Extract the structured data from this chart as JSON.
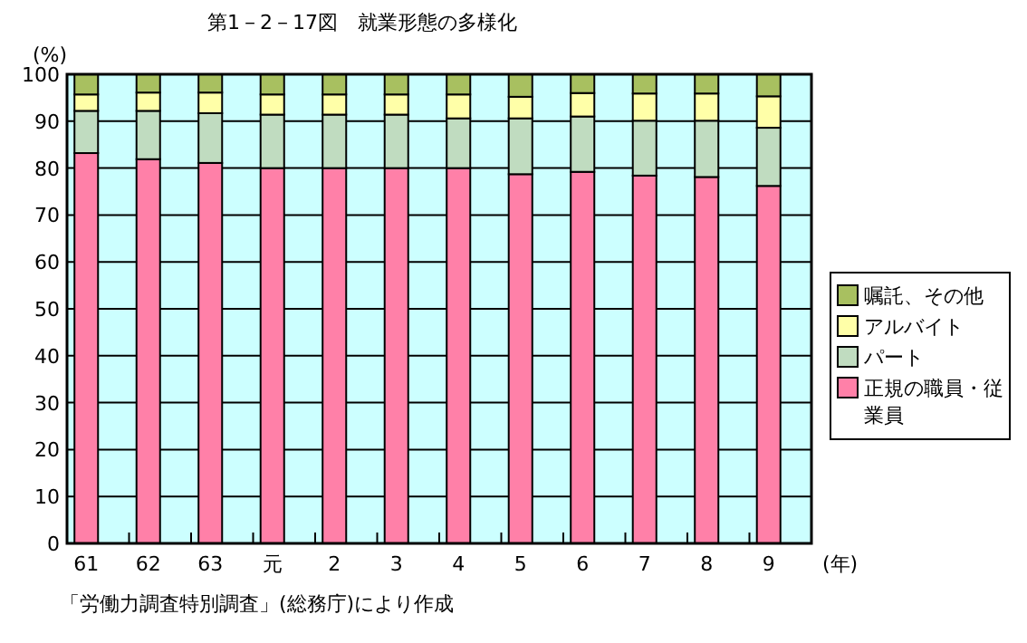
{
  "chart_data": {
    "type": "bar",
    "stacked": true,
    "title": "第1－2－17図　就業形態の多様化",
    "ylabel": "(%)",
    "xlabel": "(年)",
    "categories": [
      "61",
      "62",
      "63",
      "元",
      "2",
      "3",
      "4",
      "5",
      "6",
      "7",
      "8",
      "9"
    ],
    "series": [
      {
        "name": "正規の職員・従業員",
        "color": "#ff80a8",
        "values": [
          83.2,
          81.9,
          81.1,
          80.0,
          80.0,
          80.0,
          80.0,
          78.7,
          79.2,
          78.4,
          78.1,
          76.2
        ]
      },
      {
        "name": "パート",
        "color": "#c0dcc0",
        "values": [
          9.0,
          10.3,
          10.6,
          11.4,
          11.4,
          11.4,
          10.6,
          11.9,
          11.8,
          11.7,
          12.0,
          12.4
        ]
      },
      {
        "name": "アルバイト",
        "color": "#ffffa8",
        "values": [
          3.5,
          3.9,
          4.4,
          4.3,
          4.3,
          4.3,
          5.1,
          4.6,
          5.0,
          5.8,
          5.8,
          6.7
        ]
      },
      {
        "name": "嘱託、その他",
        "color": "#a8c060",
        "values": [
          4.3,
          3.9,
          3.9,
          4.3,
          4.3,
          4.3,
          4.3,
          4.8,
          4.0,
          4.1,
          4.1,
          4.7
        ]
      }
    ],
    "ylim": [
      0,
      100
    ],
    "yticks": [
      0,
      10,
      20,
      30,
      40,
      50,
      60,
      70,
      80,
      90,
      100
    ],
    "grid": "y",
    "legend": "right",
    "annotations": [
      "「労働力調査特別調査」(総務庁)により作成"
    ]
  }
}
